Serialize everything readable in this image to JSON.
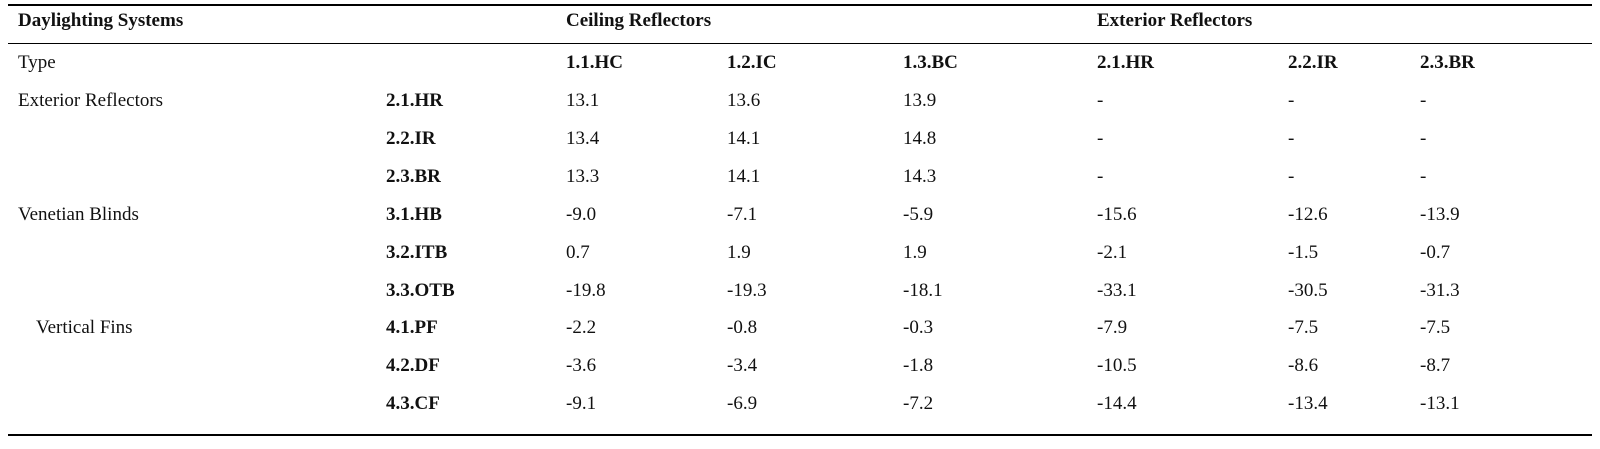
{
  "table": {
    "header": {
      "col0": "Daylighting Systems",
      "group1": "Ceiling Reflectors",
      "group2": "Exterior Reflectors"
    },
    "type_row": {
      "label": "Type",
      "columns": [
        "1.1.HC",
        "1.2.IC",
        "1.3.BC",
        "2.1.HR",
        "2.2.IR",
        "2.3.BR"
      ]
    },
    "rows": [
      {
        "group": "Exterior Reflectors",
        "code": "2.1.HR",
        "values": [
          "13.1",
          "13.6",
          "13.9",
          "-",
          "-",
          "-"
        ]
      },
      {
        "group": "",
        "code": "2.2.IR",
        "values": [
          "13.4",
          "14.1",
          "14.8",
          "-",
          "-",
          "-"
        ]
      },
      {
        "group": "",
        "code": "2.3.BR",
        "values": [
          "13.3",
          "14.1",
          "14.3",
          "-",
          "-",
          "-"
        ]
      },
      {
        "group": "Venetian Blinds",
        "code": "3.1.HB",
        "values": [
          "-9.0",
          "-7.1",
          "-5.9",
          "-15.6",
          "-12.6",
          "-13.9"
        ]
      },
      {
        "group": "",
        "code": "3.2.ITB",
        "values": [
          "0.7",
          "1.9",
          "1.9",
          "-2.1",
          "-1.5",
          "-0.7"
        ]
      },
      {
        "group": "",
        "code": "3.3.OTB",
        "values": [
          "-19.8",
          "-19.3",
          "-18.1",
          "-33.1",
          "-30.5",
          "-31.3"
        ]
      },
      {
        "group": "Vertical Fins",
        "code": "4.1.PF",
        "values": [
          "-2.2",
          "-0.8",
          "-0.3",
          "-7.9",
          "-7.5",
          "-7.5"
        ]
      },
      {
        "group": "",
        "code": "4.2.DF",
        "values": [
          "-3.6",
          "-3.4",
          "-1.8",
          "-10.5",
          "-8.6",
          "-8.7"
        ]
      },
      {
        "group": "",
        "code": "4.3.CF",
        "values": [
          "-9.1",
          "-6.9",
          "-7.2",
          "-14.4",
          "-13.4",
          "-13.1"
        ]
      }
    ]
  }
}
